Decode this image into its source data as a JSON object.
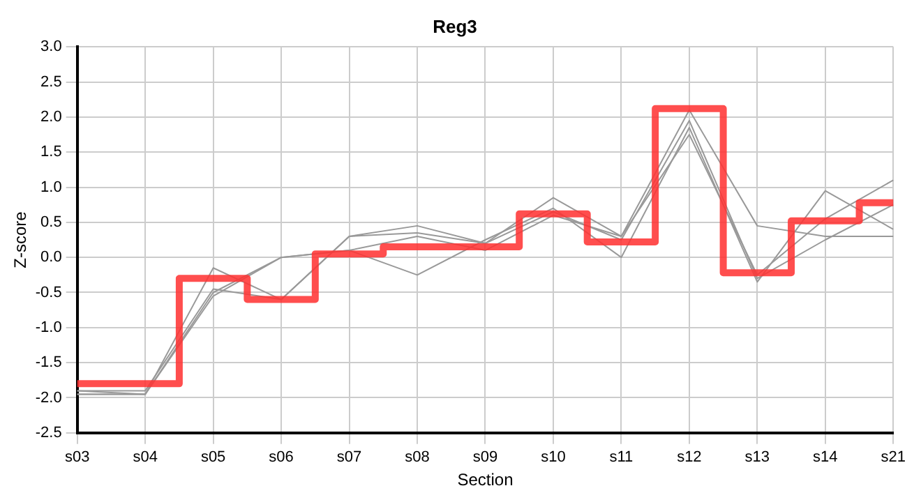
{
  "chart_data": {
    "type": "line",
    "title": "Reg3",
    "xlabel": "Section",
    "ylabel": "Z-score",
    "categories": [
      "s03",
      "s04",
      "s05",
      "s06",
      "s07",
      "s08",
      "s09",
      "s10",
      "s11",
      "s12",
      "s13",
      "s14",
      "s21"
    ],
    "series": [
      {
        "color": "#999999",
        "values": [
          -1.95,
          -1.95,
          -0.15,
          -0.6,
          0.3,
          0.45,
          0.2,
          0.85,
          0.3,
          2.1,
          0.45,
          0.3,
          0.3
        ]
      },
      {
        "color": "#999999",
        "values": [
          -1.9,
          -1.9,
          -0.45,
          -0.6,
          0.3,
          0.35,
          0.2,
          0.65,
          0.25,
          1.95,
          -0.3,
          0.25,
          0.75
        ]
      },
      {
        "color": "#999999",
        "values": [
          -1.9,
          -1.95,
          -0.5,
          0.0,
          0.1,
          -0.25,
          0.25,
          0.7,
          0.0,
          1.85,
          -0.35,
          0.95,
          0.4
        ]
      },
      {
        "color": "#999999",
        "values": [
          -1.95,
          -1.95,
          -0.55,
          0.0,
          0.1,
          0.3,
          0.1,
          0.6,
          0.3,
          1.75,
          -0.25,
          0.55,
          1.1
        ]
      },
      {
        "type": "step",
        "color": "#ff3333",
        "values": [
          -1.8,
          -1.8,
          -0.3,
          -0.6,
          0.05,
          0.15,
          0.15,
          0.62,
          0.22,
          2.12,
          -0.22,
          0.52,
          0.78
        ]
      }
    ],
    "ylim": [
      -2.5,
      3.0
    ],
    "yticks": [
      {
        "value": -2.5,
        "label": "-2.5"
      },
      {
        "value": -2,
        "label": "-2.0"
      },
      {
        "value": -1.5,
        "label": "-1.5"
      },
      {
        "value": -1,
        "label": "-1.0"
      },
      {
        "value": -0.5,
        "label": "-0.5"
      },
      {
        "value": 0,
        "label": "0.0"
      },
      {
        "value": 0.5,
        "label": "0.5"
      },
      {
        "value": 1,
        "label": "1.0"
      },
      {
        "value": 1.5,
        "label": "1.5"
      },
      {
        "value": 2,
        "label": "2.0"
      },
      {
        "value": 2.5,
        "label": "2.5"
      },
      {
        "value": 3,
        "label": "3.0"
      }
    ],
    "grid": true,
    "legend": false,
    "marker": "none",
    "line_style": "solid"
  }
}
